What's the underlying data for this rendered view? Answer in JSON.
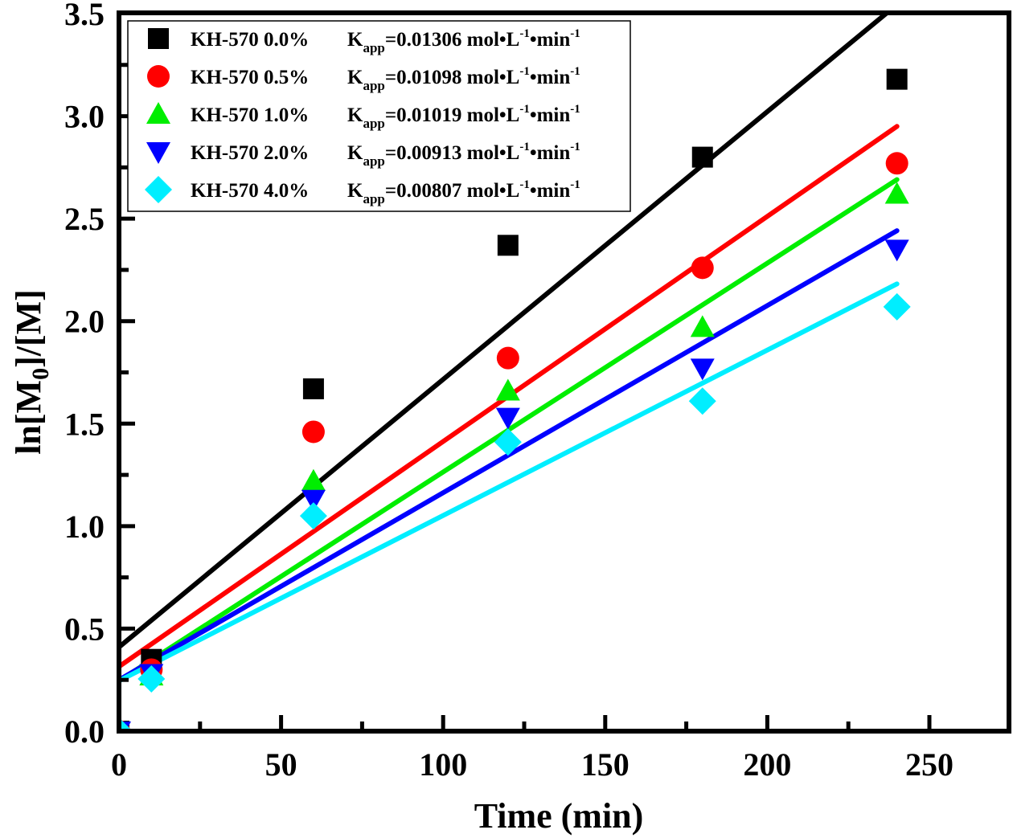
{
  "chart_data": {
    "type": "scatter",
    "title": "",
    "xlabel": "Time (min)",
    "ylabel": "ln[M0]/[M]",
    "ylabel_parts": {
      "prefix": "ln[M",
      "sub": "0",
      "suffix": "]/[M]"
    },
    "xlim": [
      0,
      275
    ],
    "ylim": [
      0,
      3.5
    ],
    "x_ticks": [
      0,
      50,
      100,
      150,
      200,
      250
    ],
    "x_tick_labels": [
      "0",
      "50",
      "100",
      "150",
      "200",
      "250"
    ],
    "x_minor_step": 25,
    "y_ticks": [
      0.0,
      0.5,
      1.0,
      1.5,
      2.0,
      2.5,
      3.0,
      3.5
    ],
    "y_tick_labels": [
      "0.0",
      "0.5",
      "1.0",
      "1.5",
      "2.0",
      "2.5",
      "3.0",
      "3.5"
    ],
    "y_minor_step": 0.25,
    "grid": false,
    "legend_position": "top-left",
    "x": [
      0,
      10,
      60,
      120,
      180,
      240
    ],
    "series": [
      {
        "name": "KH-570 0.0%",
        "kapp_value": "0.01306",
        "marker": "square",
        "color": "#000000",
        "values": [
          0.0,
          0.35,
          1.67,
          2.37,
          2.8,
          3.18
        ],
        "fit": {
          "slope": 0.01306,
          "intercept": 0.41,
          "x_range": [
            0,
            240
          ]
        }
      },
      {
        "name": "KH-570 0.5%",
        "kapp_value": "0.01098",
        "marker": "circle",
        "color": "#ff0000",
        "values": [
          0.0,
          0.3,
          1.46,
          1.82,
          2.26,
          2.77
        ],
        "fit": {
          "slope": 0.01098,
          "intercept": 0.315,
          "x_range": [
            0,
            240
          ]
        }
      },
      {
        "name": "KH-570 1.0%",
        "kapp_value": "0.01019",
        "marker": "triangle-up",
        "color": "#00ee00",
        "values": [
          0.0,
          0.27,
          1.22,
          1.66,
          1.97,
          2.62
        ],
        "fit": {
          "slope": 0.01019,
          "intercept": 0.245,
          "x_range": [
            0,
            240
          ]
        }
      },
      {
        "name": "KH-570 2.0%",
        "kapp_value": "0.00913",
        "marker": "triangle-down",
        "color": "#0000ff",
        "values": [
          0.0,
          0.28,
          1.13,
          1.53,
          1.77,
          2.35
        ],
        "fit": {
          "slope": 0.00913,
          "intercept": 0.25,
          "x_range": [
            0,
            240
          ]
        }
      },
      {
        "name": "KH-570 4.0%",
        "kapp_value": "0.00807",
        "marker": "diamond",
        "color": "#00eeff",
        "values": [
          0.0,
          0.255,
          1.05,
          1.41,
          1.61,
          2.07
        ],
        "fit": {
          "slope": 0.00807,
          "intercept": 0.245,
          "x_range": [
            0,
            240
          ]
        }
      }
    ],
    "legend_kapp_label": {
      "main": "K",
      "sub": "app",
      "eq": "=",
      "unit_a": " mol•L",
      "sup1": "-1",
      "unit_b": "•min",
      "sup2": "-1"
    }
  }
}
